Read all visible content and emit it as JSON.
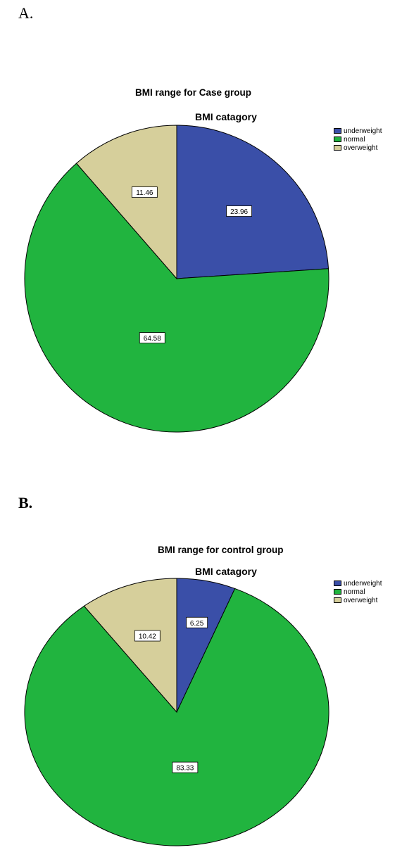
{
  "panels": {
    "a_label": "A.",
    "b_label": "B."
  },
  "chart_data": [
    {
      "type": "pie",
      "title": "BMI range for Case group",
      "subtitle": "BMI catagory",
      "legend_placement": "top-right",
      "categories": [
        "underweight",
        "normal",
        "overweight"
      ],
      "values": [
        23.96,
        64.58,
        11.46
      ],
      "labels": [
        "23.96",
        "64.58",
        "11.46"
      ],
      "colors": [
        "#3a4fa8",
        "#21b43f",
        "#d6cf9b"
      ]
    },
    {
      "type": "pie",
      "title": "BMI range for control group",
      "subtitle": "BMI catagory",
      "legend_placement": "top-right",
      "categories": [
        "underweight",
        "normal",
        "overweight"
      ],
      "values": [
        6.25,
        83.33,
        10.42
      ],
      "labels": [
        "6.25",
        "83.33",
        "10.42"
      ],
      "colors": [
        "#3a4fa8",
        "#21b43f",
        "#d6cf9b"
      ]
    }
  ]
}
